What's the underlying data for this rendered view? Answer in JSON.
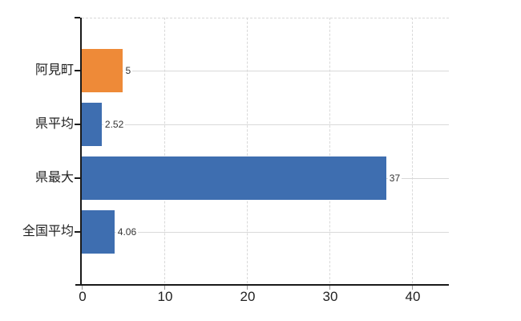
{
  "chart_data": {
    "type": "bar",
    "orientation": "horizontal",
    "title": "",
    "xlabel": "",
    "ylabel": "",
    "categories": [
      "阿見町",
      "県平均",
      "県最大",
      "全国平均"
    ],
    "values": [
      5,
      2.52,
      37,
      4.06
    ],
    "value_labels": [
      "5",
      "2.52",
      "37",
      "4.06"
    ],
    "bar_colors": [
      "#ee8a38",
      "#3e6eb0",
      "#3e6eb0",
      "#3e6eb0"
    ],
    "x_ticks": [
      0,
      10,
      20,
      30,
      40
    ],
    "x_tick_labels": [
      "0",
      "10",
      "20",
      "30",
      "40"
    ],
    "xlim": [
      0,
      44.5
    ],
    "grid": true,
    "legend": false,
    "colors": {
      "highlight_bar": "#ee8a38",
      "default_bar": "#3e6eb0",
      "grid_solid": "#d9d9d9",
      "grid_dashed": "#d8d8d8",
      "axis": "#1a1a1a",
      "label_text": "#222222",
      "value_text": "#333333"
    }
  }
}
